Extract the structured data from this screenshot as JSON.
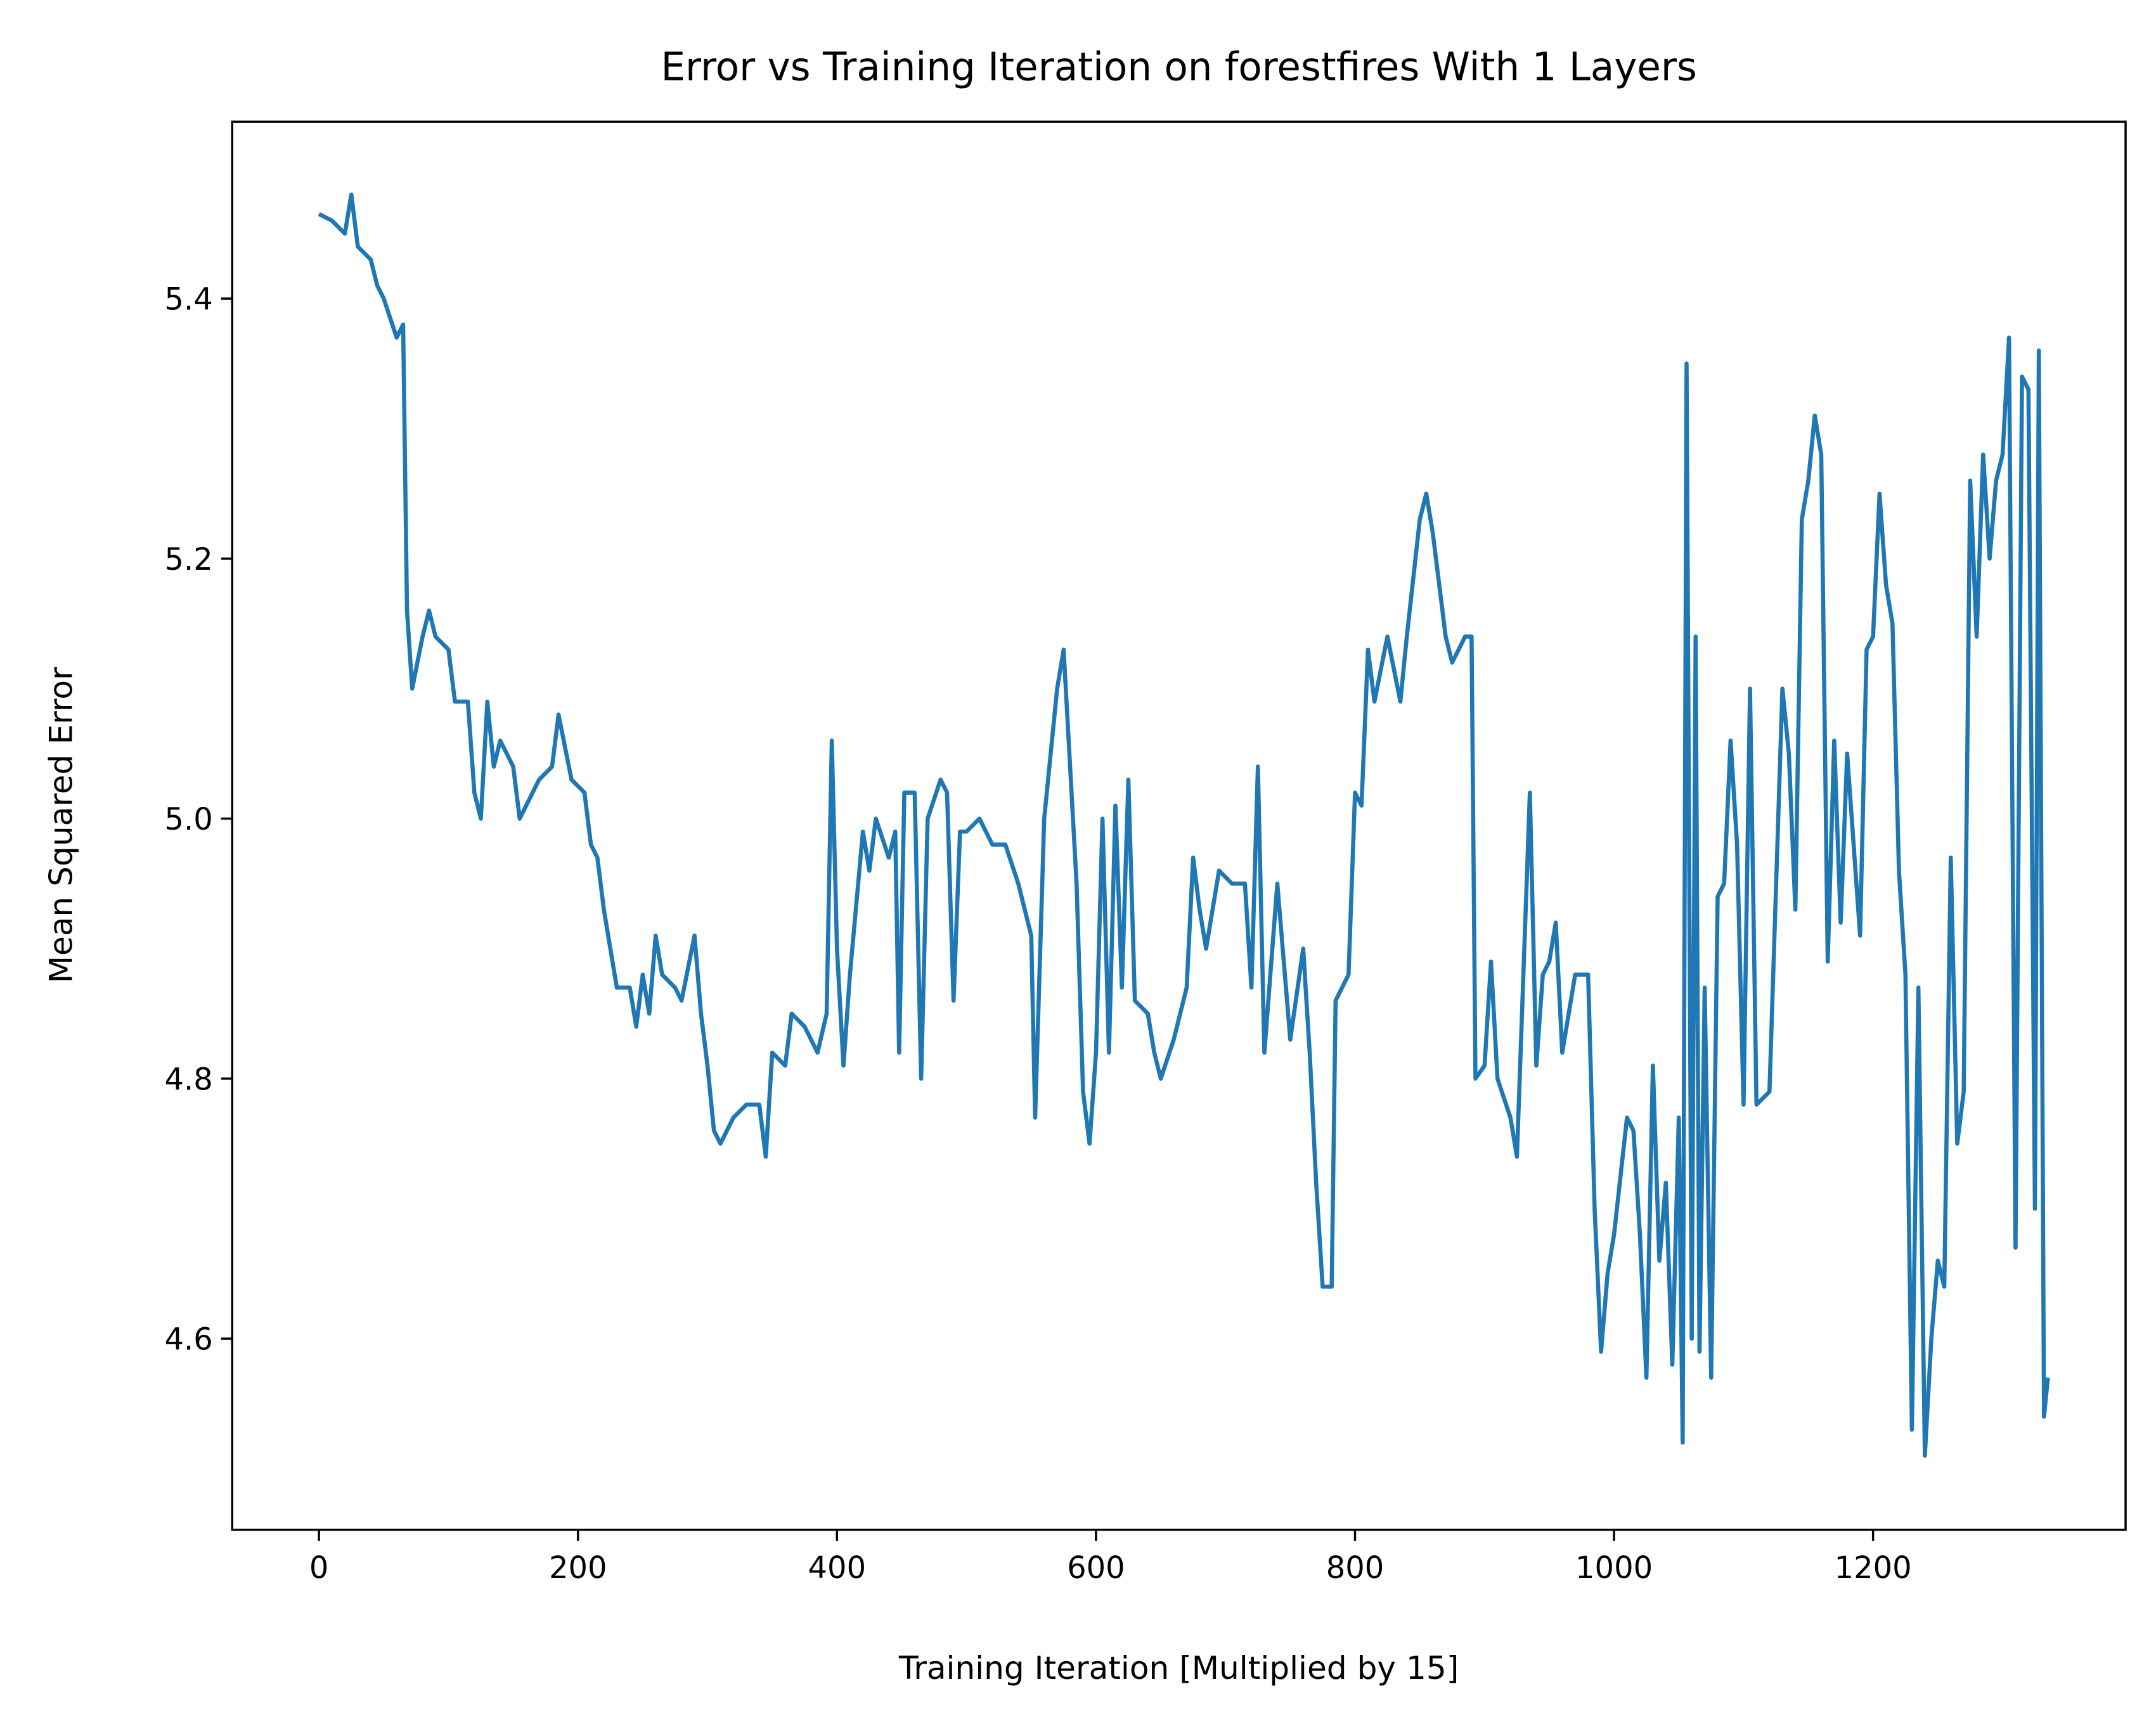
{
  "chart_data": {
    "type": "line",
    "title": "Error vs Training Iteration on forestfires With 1 Layers",
    "xlabel": "Training Iteration [Multiplied by 15]",
    "ylabel": "Mean Squared Error",
    "xlim": [
      -67,
      1395
    ],
    "ylim": [
      4.453,
      5.536
    ],
    "xticks": [
      0,
      200,
      400,
      600,
      800,
      1000,
      1200
    ],
    "yticks": [
      4.6,
      4.8,
      {
        "value": 5,
        "label": "5.0"
      },
      5.2,
      5.4
    ],
    "grid": false,
    "x": [
      0,
      10,
      20,
      25,
      30,
      40,
      45,
      50,
      60,
      65,
      68,
      72,
      80,
      85,
      90,
      100,
      105,
      115,
      120,
      125,
      130,
      135,
      140,
      150,
      155,
      165,
      170,
      180,
      185,
      195,
      205,
      210,
      215,
      220,
      230,
      240,
      245,
      250,
      255,
      260,
      265,
      275,
      280,
      290,
      295,
      300,
      305,
      310,
      320,
      330,
      340,
      345,
      350,
      360,
      365,
      375,
      385,
      392,
      396,
      400,
      405,
      410,
      420,
      425,
      430,
      440,
      445,
      448,
      452,
      460,
      465,
      470,
      480,
      485,
      490,
      495,
      500,
      510,
      520,
      530,
      540,
      550,
      553,
      560,
      570,
      575,
      580,
      585,
      590,
      595,
      600,
      605,
      610,
      615,
      620,
      625,
      630,
      640,
      645,
      650,
      660,
      670,
      675,
      680,
      685,
      695,
      705,
      715,
      720,
      725,
      730,
      740,
      750,
      760,
      765,
      770,
      775,
      782,
      785,
      795,
      800,
      805,
      810,
      815,
      825,
      835,
      840,
      850,
      855,
      860,
      870,
      875,
      885,
      890,
      893,
      900,
      905,
      910,
      920,
      925,
      935,
      940,
      945,
      950,
      955,
      960,
      965,
      970,
      980,
      985,
      990,
      995,
      1000,
      1010,
      1015,
      1020,
      1025,
      1030,
      1035,
      1040,
      1045,
      1050,
      1053,
      1056,
      1060,
      1063,
      1066,
      1070,
      1075,
      1080,
      1085,
      1090,
      1095,
      1100,
      1105,
      1110,
      1120,
      1130,
      1135,
      1140,
      1145,
      1150,
      1155,
      1160,
      1165,
      1170,
      1175,
      1180,
      1190,
      1195,
      1200,
      1205,
      1210,
      1215,
      1220,
      1225,
      1230,
      1235,
      1240,
      1245,
      1250,
      1255,
      1260,
      1265,
      1270,
      1275,
      1280,
      1285,
      1290,
      1295,
      1300,
      1305,
      1310,
      1315,
      1320,
      1325,
      1328,
      1332,
      1335
    ],
    "series": [
      {
        "color": "#1f77b4",
        "values": [
          5.465,
          5.46,
          5.45,
          5.48,
          5.44,
          5.43,
          5.41,
          5.4,
          5.37,
          5.38,
          5.16,
          5.1,
          5.14,
          5.16,
          5.14,
          5.13,
          5.09,
          5.09,
          5.02,
          5.0,
          5.09,
          5.04,
          5.06,
          5.04,
          5.0,
          5.02,
          5.03,
          5.04,
          5.08,
          5.03,
          5.02,
          4.98,
          4.97,
          4.93,
          4.87,
          4.87,
          4.84,
          4.88,
          4.85,
          4.91,
          4.88,
          4.87,
          4.86,
          4.91,
          4.85,
          4.81,
          4.76,
          4.75,
          4.77,
          4.78,
          4.78,
          4.74,
          4.82,
          4.81,
          4.85,
          4.84,
          4.82,
          4.85,
          5.06,
          4.9,
          4.81,
          4.88,
          4.99,
          4.96,
          5.0,
          4.97,
          4.99,
          4.82,
          5.02,
          5.02,
          4.8,
          5.0,
          5.03,
          5.02,
          4.86,
          4.99,
          4.99,
          5.0,
          4.98,
          4.98,
          4.95,
          4.91,
          4.77,
          5.0,
          5.1,
          5.13,
          5.04,
          4.95,
          4.79,
          4.75,
          4.82,
          5.0,
          4.82,
          5.01,
          4.87,
          5.03,
          4.86,
          4.85,
          4.82,
          4.8,
          4.83,
          4.87,
          4.97,
          4.93,
          4.9,
          4.96,
          4.95,
          4.95,
          4.87,
          5.04,
          4.82,
          4.95,
          4.83,
          4.9,
          4.82,
          4.72,
          4.64,
          4.64,
          4.86,
          4.88,
          5.02,
          5.01,
          5.13,
          5.09,
          5.14,
          5.09,
          5.14,
          5.23,
          5.25,
          5.22,
          5.14,
          5.12,
          5.14,
          5.14,
          4.8,
          4.81,
          4.89,
          4.8,
          4.77,
          4.74,
          5.02,
          4.81,
          4.88,
          4.89,
          4.92,
          4.82,
          4.85,
          4.88,
          4.88,
          4.7,
          4.59,
          4.65,
          4.68,
          4.77,
          4.76,
          4.68,
          4.57,
          4.81,
          4.66,
          4.72,
          4.58,
          4.77,
          4.52,
          5.35,
          4.6,
          5.14,
          4.59,
          4.87,
          4.57,
          4.94,
          4.95,
          5.06,
          4.98,
          4.78,
          5.1,
          4.78,
          4.79,
          5.1,
          5.05,
          4.93,
          5.23,
          5.26,
          5.31,
          5.28,
          4.89,
          5.06,
          4.92,
          5.05,
          4.91,
          5.13,
          5.14,
          5.25,
          5.18,
          5.15,
          4.96,
          4.88,
          4.53,
          4.87,
          4.51,
          4.6,
          4.66,
          4.64,
          4.97,
          4.75,
          4.79,
          5.26,
          5.14,
          5.28,
          5.2,
          5.26,
          5.28,
          5.37,
          4.67,
          5.34,
          5.33,
          4.7,
          5.36,
          4.54,
          4.57
        ]
      }
    ]
  }
}
